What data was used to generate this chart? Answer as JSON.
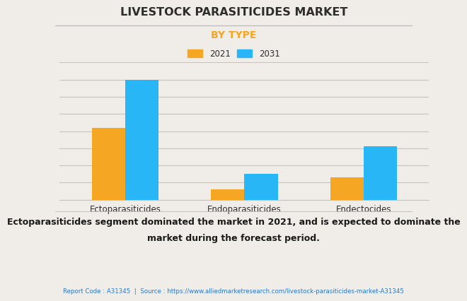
{
  "title": "LIVESTOCK PARASITICIDES MARKET",
  "subtitle": "BY TYPE",
  "categories": [
    "Ectoparasiticides",
    "Endoparasiticides",
    "Endectocides"
  ],
  "series": [
    {
      "label": "2021",
      "color": "#F5A623",
      "values": [
        2.1,
        0.3,
        0.65
      ]
    },
    {
      "label": "2031",
      "color": "#29B6F6",
      "values": [
        3.5,
        0.75,
        1.55
      ]
    }
  ],
  "background_color": "#F0EDE8",
  "plot_bg_color": "#F0EDE8",
  "title_color": "#2D2D2D",
  "subtitle_color": "#F5A623",
  "grid_color": "#C8C4BC",
  "ylim": [
    0,
    4.0
  ],
  "bar_width": 0.28,
  "footer_text_line1": "Ectoparasiticides segment dominated the market in 2021, and is expected to dominate the",
  "footer_text_line2": "market during the forecast period.",
  "source_text": "Report Code : A31345  |  Source : https://www.alliedmarketresearch.com/livestock-parasiticides-market-A31345",
  "source_color": "#2979CC",
  "footer_color": "#1A1A1A"
}
